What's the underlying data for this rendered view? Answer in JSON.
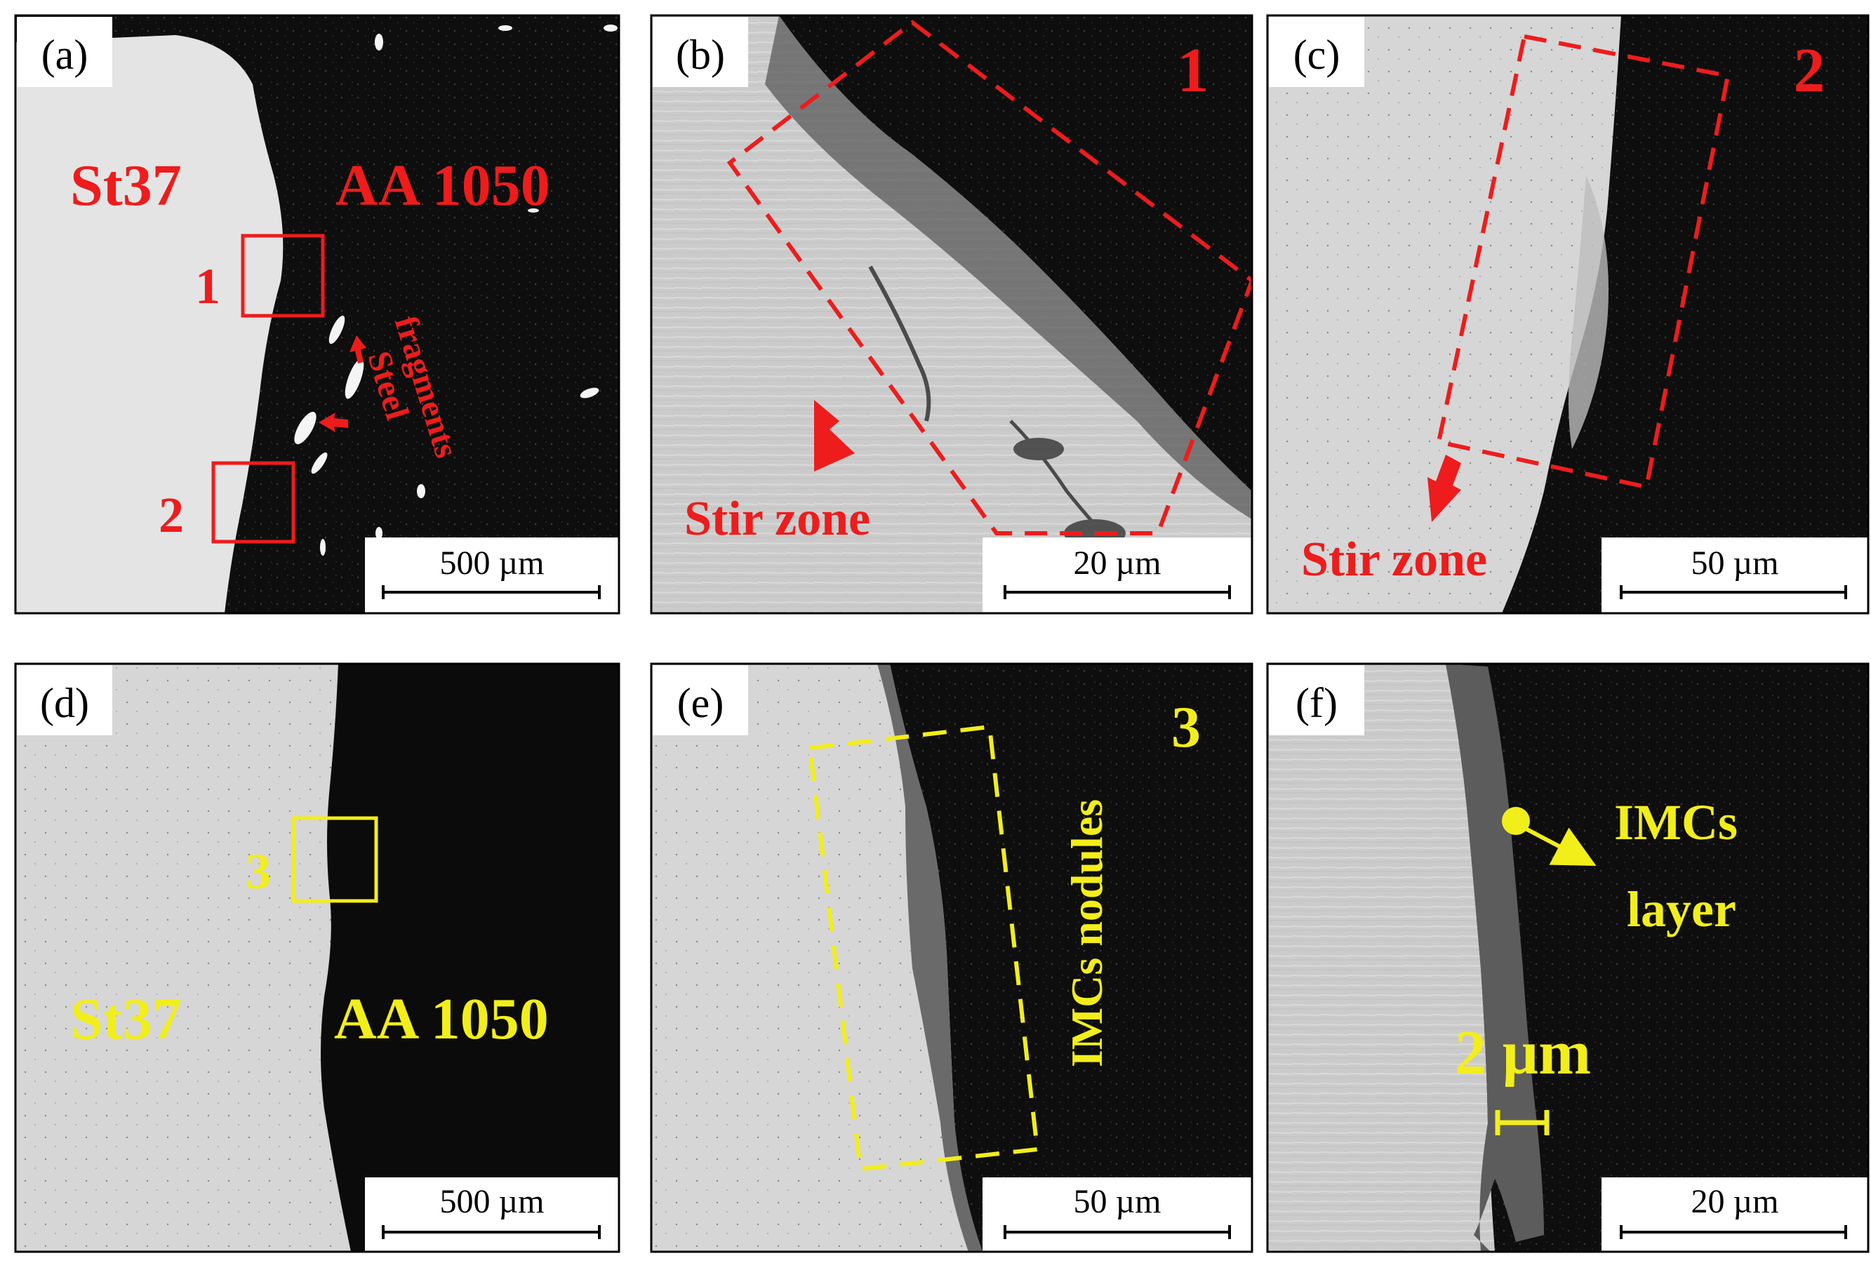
{
  "colors": {
    "annotation_red": "#ee1c1c",
    "annotation_yellow": "#f2ee1a",
    "steel": "#e2e2e2",
    "aluminum": "#0d0d0d"
  },
  "panels": {
    "a": {
      "tag": "(a)",
      "materials": [
        "St37",
        "AA 1050"
      ],
      "box_labels": [
        "1",
        "2"
      ],
      "note_lines": [
        "Steel",
        "fragments"
      ],
      "scale_bar": "500 µm"
    },
    "b": {
      "tag": "(b)",
      "region_number": "1",
      "zone_label": "Stir zone",
      "scale_bar": "20 µm"
    },
    "c": {
      "tag": "(c)",
      "region_number": "2",
      "zone_label": "Stir zone",
      "scale_bar": "50 µm"
    },
    "d": {
      "tag": "(d)",
      "materials": [
        "St37",
        "AA 1050"
      ],
      "box_label": "3",
      "scale_bar": "500 µm"
    },
    "e": {
      "tag": "(e)",
      "region_number": "3",
      "note": "IMCs nodules",
      "scale_bar": "50 µm"
    },
    "f": {
      "tag": "(f)",
      "note_lines": [
        "IMCs",
        "layer"
      ],
      "thickness": "2 µm",
      "scale_bar": "20 µm"
    }
  }
}
